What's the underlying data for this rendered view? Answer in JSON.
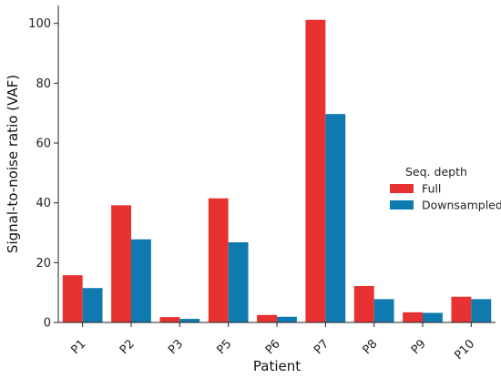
{
  "chart_data": {
    "type": "bar",
    "xlabel": "Patient",
    "ylabel": "Signal-to-noise ratio (VAF)",
    "ylim": [
      0,
      106
    ],
    "yticks": [
      0,
      20,
      40,
      60,
      80,
      100
    ],
    "categories": [
      "P1",
      "P2",
      "P3",
      "P5",
      "P6",
      "P7",
      "P8",
      "P9",
      "P10"
    ],
    "legend_title": "Seq. depth",
    "legend_position": "right",
    "grid": false,
    "series": [
      {
        "name": "Full",
        "color": "#e83232",
        "values": [
          15.8,
          39.2,
          1.8,
          41.5,
          2.5,
          101.2,
          12.2,
          3.4,
          8.6
        ]
      },
      {
        "name": "Downsampled",
        "color": "#0e7ab0",
        "values": [
          11.5,
          27.8,
          1.2,
          26.8,
          1.9,
          69.7,
          7.8,
          3.2,
          7.8
        ]
      }
    ]
  }
}
